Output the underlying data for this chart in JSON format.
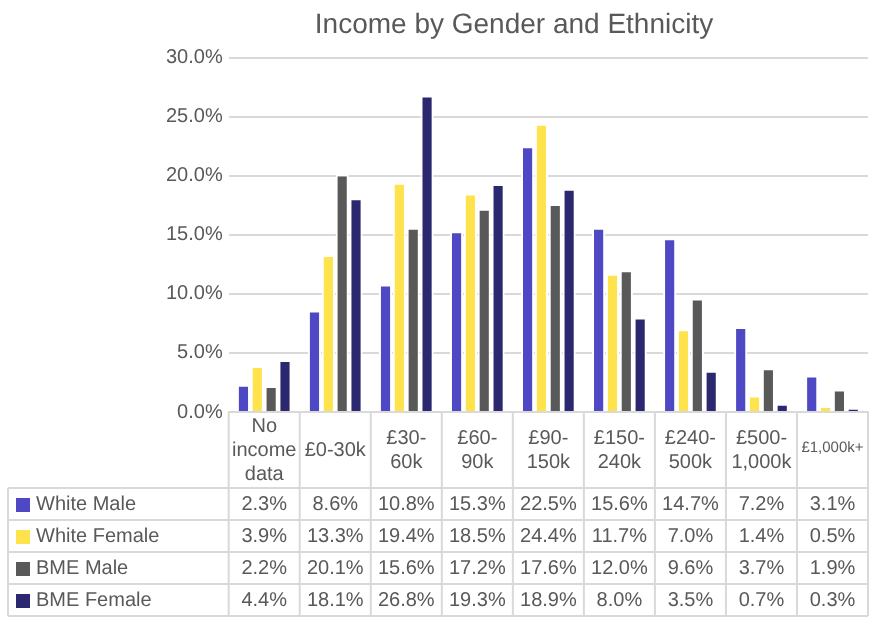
{
  "chart_data": {
    "type": "bar",
    "title": "Income by Gender and Ethnicity",
    "categories": [
      "No income data",
      "£0-30k",
      "£30-60k",
      "£60-90k",
      "£90-150k",
      "£150-240k",
      "£240-500k",
      "£500-1,000k",
      "£1,000k+"
    ],
    "series": [
      {
        "name": "White Male",
        "color": "#4f48c4",
        "values": [
          2.3,
          8.6,
          10.8,
          15.3,
          22.5,
          15.6,
          14.7,
          7.2,
          3.1
        ],
        "value_labels": [
          "2.3%",
          "8.6%",
          "10.8%",
          "15.3%",
          "22.5%",
          "15.6%",
          "14.7%",
          "7.2%",
          "3.1%"
        ]
      },
      {
        "name": "White Female",
        "color": "#ffe34d",
        "values": [
          3.9,
          13.3,
          19.4,
          18.5,
          24.4,
          11.7,
          7.0,
          1.4,
          0.5
        ],
        "value_labels": [
          "3.9%",
          "13.3%",
          "19.4%",
          "18.5%",
          "24.4%",
          "11.7%",
          "7.0%",
          "1.4%",
          "0.5%"
        ]
      },
      {
        "name": "BME Male",
        "color": "#595959",
        "values": [
          2.2,
          20.1,
          15.6,
          17.2,
          17.6,
          12.0,
          9.6,
          3.7,
          1.9
        ],
        "value_labels": [
          "2.2%",
          "20.1%",
          "15.6%",
          "17.2%",
          "17.6%",
          "12.0%",
          "9.6%",
          "3.7%",
          "1.9%"
        ]
      },
      {
        "name": "BME Female",
        "color": "#2c2870",
        "values": [
          4.4,
          18.1,
          26.8,
          19.3,
          18.9,
          8.0,
          3.5,
          0.7,
          0.3
        ],
        "value_labels": [
          "4.4%",
          "18.1%",
          "26.8%",
          "19.3%",
          "18.9%",
          "8.0%",
          "3.5%",
          "0.7%",
          "0.3%"
        ]
      }
    ],
    "ylim": [
      0,
      30
    ],
    "yticks": [
      {
        "value": 0,
        "label": "0.0%"
      },
      {
        "value": 5,
        "label": "5.0%"
      },
      {
        "value": 10,
        "label": "10.0%"
      },
      {
        "value": 15,
        "label": "15.0%"
      },
      {
        "value": 20,
        "label": "20.0%"
      },
      {
        "value": 25,
        "label": "25.0%"
      },
      {
        "value": 30,
        "label": "30.0%"
      }
    ],
    "grid": "y",
    "legend": "bottom"
  }
}
